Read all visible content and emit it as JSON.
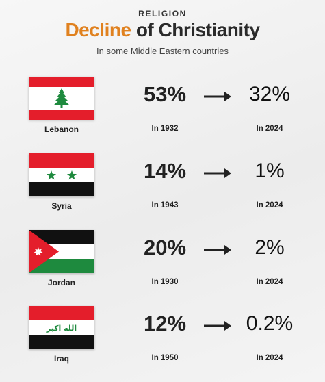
{
  "header": {
    "kicker": "RELIGION",
    "title_accent": "Decline",
    "title_rest": " of Christianity",
    "subtitle": "In some Middle Eastern countries"
  },
  "rows": [
    {
      "country": "Lebanon",
      "from_pct": "53%",
      "from_year": "In 1932",
      "to_pct": "32%",
      "to_year": "In 2024",
      "flag_icon": "lebanon-flag-icon"
    },
    {
      "country": "Syria",
      "from_pct": "14%",
      "from_year": "In 1943",
      "to_pct": "1%",
      "to_year": "In 2024",
      "flag_icon": "syria-flag-icon"
    },
    {
      "country": "Jordan",
      "from_pct": "20%",
      "from_year": "In 1930",
      "to_pct": "2%",
      "to_year": "In 2024",
      "flag_icon": "jordan-flag-icon"
    },
    {
      "country": "Iraq",
      "from_pct": "12%",
      "from_year": "In 1950",
      "to_pct": "0.2%",
      "to_year": "In 2024",
      "flag_icon": "iraq-flag-icon",
      "flag_text": "الله اكبر"
    }
  ],
  "colors": {
    "accent": "#e0811f",
    "flag_red": "#e41e2b",
    "flag_green": "#1e8a3e",
    "flag_black": "#111111"
  }
}
